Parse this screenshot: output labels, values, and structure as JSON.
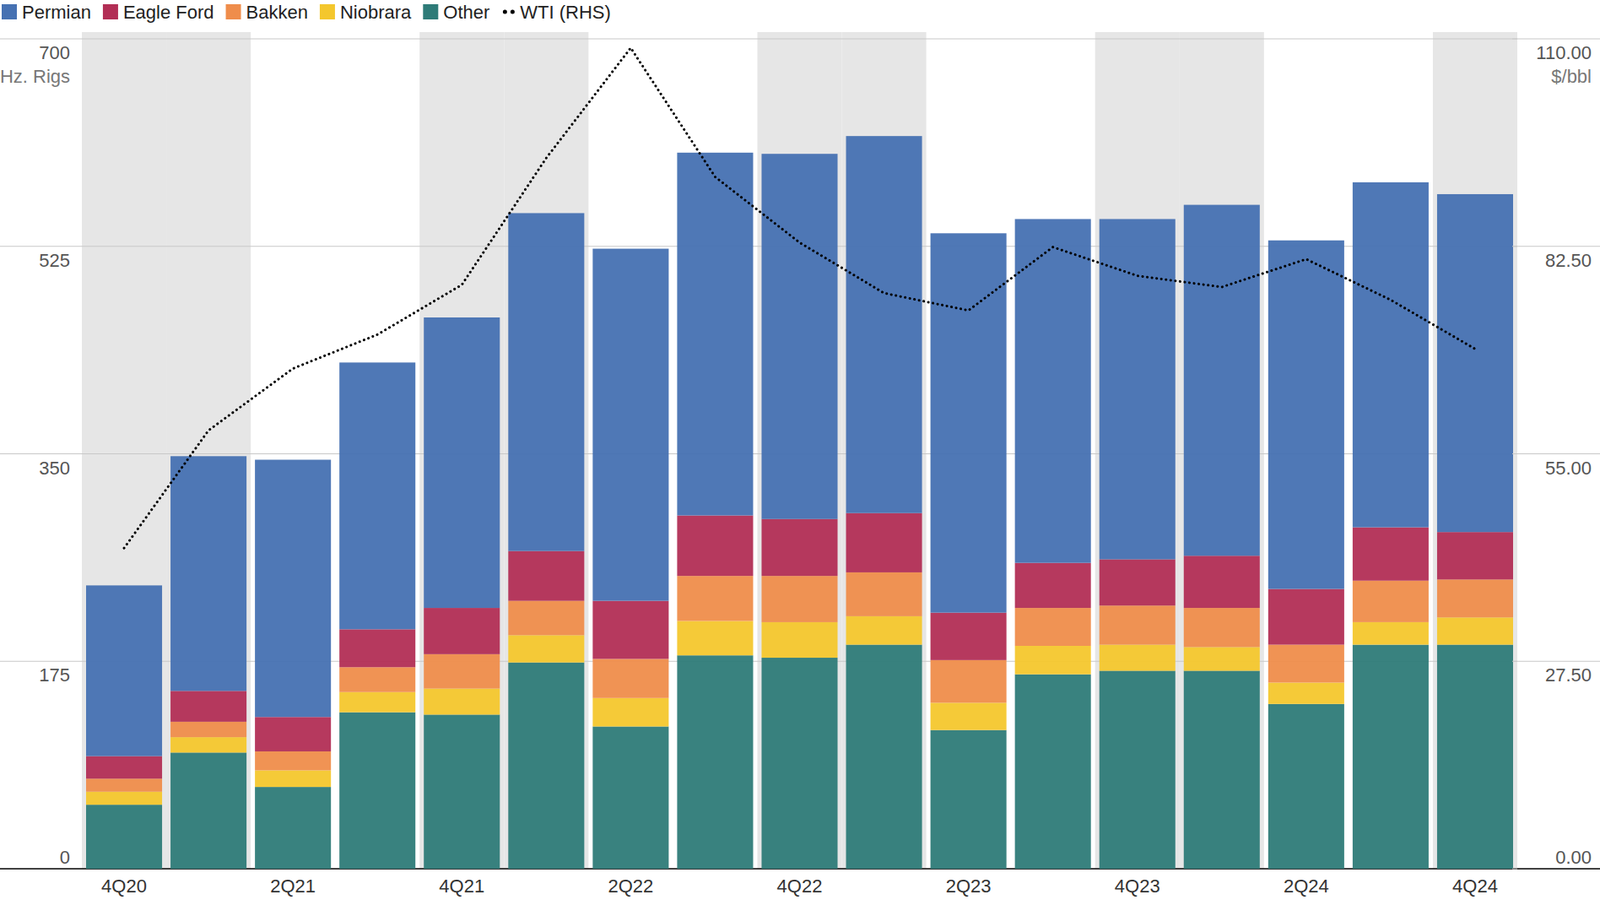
{
  "chart_data": {
    "type": "bar",
    "stacked": true,
    "grid": true,
    "legend": "top-left",
    "y_label": "Hz. Rigs",
    "y2_label": "$/bbl",
    "categories": [
      "4Q20",
      null,
      "2Q21",
      null,
      "4Q21",
      null,
      "2Q22",
      null,
      "4Q22",
      null,
      "2Q23",
      null,
      "4Q23",
      null,
      "2Q24",
      null,
      "4Q24"
    ],
    "ylim": [
      0,
      700
    ],
    "yticks": [
      0,
      175,
      350,
      525,
      700
    ],
    "y2lim": [
      0,
      110
    ],
    "y2ticks": [
      {
        "value": 0,
        "label": "0.00"
      },
      {
        "value": 27.5,
        "label": "27.50"
      },
      {
        "value": 55,
        "label": "55.00"
      },
      {
        "value": 82.5,
        "label": "82.50"
      },
      {
        "value": 110,
        "label": "110.00"
      }
    ],
    "series": [
      {
        "name": "Permian",
        "type": "bar",
        "color": "#4671b2",
        "values": [
          144,
          198,
          217,
          225,
          245,
          285,
          297,
          306,
          308,
          318,
          320,
          290,
          287,
          296,
          294,
          291,
          285
        ]
      },
      {
        "name": "Eagle Ford",
        "type": "bar",
        "color": "#b22e55",
        "values": [
          19,
          26,
          29,
          32,
          39,
          42,
          49,
          51,
          48,
          50,
          40,
          38,
          39,
          44,
          47,
          45,
          40
        ]
      },
      {
        "name": "Bakken",
        "type": "bar",
        "color": "#ef8d4b",
        "values": [
          11,
          13,
          16,
          21,
          29,
          29,
          33,
          38,
          39,
          37,
          36,
          32,
          33,
          33,
          32,
          35,
          32
        ]
      },
      {
        "name": "Niobrara",
        "type": "bar",
        "color": "#f4c72d",
        "values": [
          11,
          13,
          14,
          17,
          22,
          23,
          24,
          29,
          30,
          24,
          23,
          24,
          22,
          20,
          18,
          19,
          23
        ]
      },
      {
        "name": "Other",
        "type": "bar",
        "color": "#2e7b78",
        "values": [
          54,
          98,
          69,
          132,
          130,
          174,
          120,
          180,
          178,
          189,
          117,
          164,
          167,
          167,
          139,
          189,
          189
        ]
      },
      {
        "name": "WTI (RHS)",
        "type": "line",
        "axis": "y2",
        "color": "#000000",
        "line_style": "dotted",
        "values": [
          42.5,
          58.1,
          66.3,
          70.8,
          77.4,
          94.2,
          108.8,
          91.7,
          83.0,
          76.3,
          74.0,
          82.4,
          78.6,
          77.1,
          80.8,
          75.4,
          68.9
        ]
      }
    ]
  }
}
